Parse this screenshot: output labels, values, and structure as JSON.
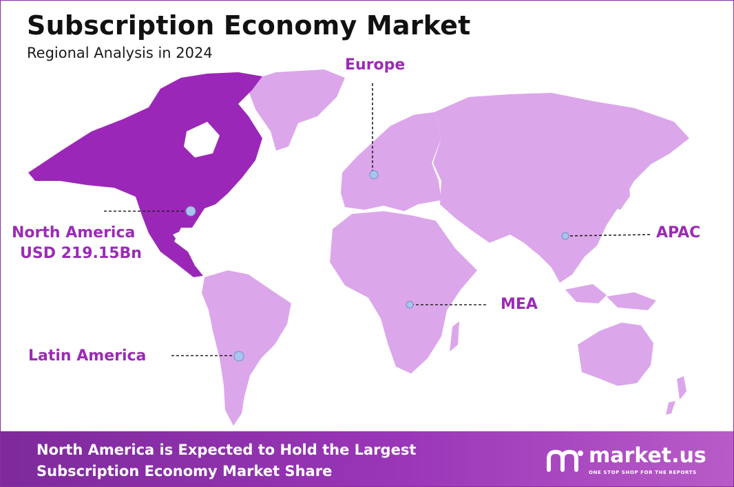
{
  "header": {
    "title": "Subscription Economy Market",
    "subtitle": "Regional Analysis in 2024"
  },
  "map": {
    "highlight_color": "#9b27b8",
    "land_color": "#dca6eb",
    "marker_color": "#a9c4ee",
    "regions": [
      {
        "id": "north-america",
        "line1": "North America",
        "line2": "USD 219.15Bn",
        "highlighted": true
      },
      {
        "id": "europe",
        "line1": "Europe"
      },
      {
        "id": "apac",
        "line1": "APAC"
      },
      {
        "id": "mea",
        "line1": "MEA"
      },
      {
        "id": "latin-america",
        "line1": "Latin America"
      }
    ]
  },
  "footer": {
    "line1": "North America is Expected to Hold the Largest",
    "line2": "Subscription Economy Market Share",
    "logo_name": "market.us",
    "logo_tagline": "ONE STOP SHOP FOR THE REPORTS"
  }
}
